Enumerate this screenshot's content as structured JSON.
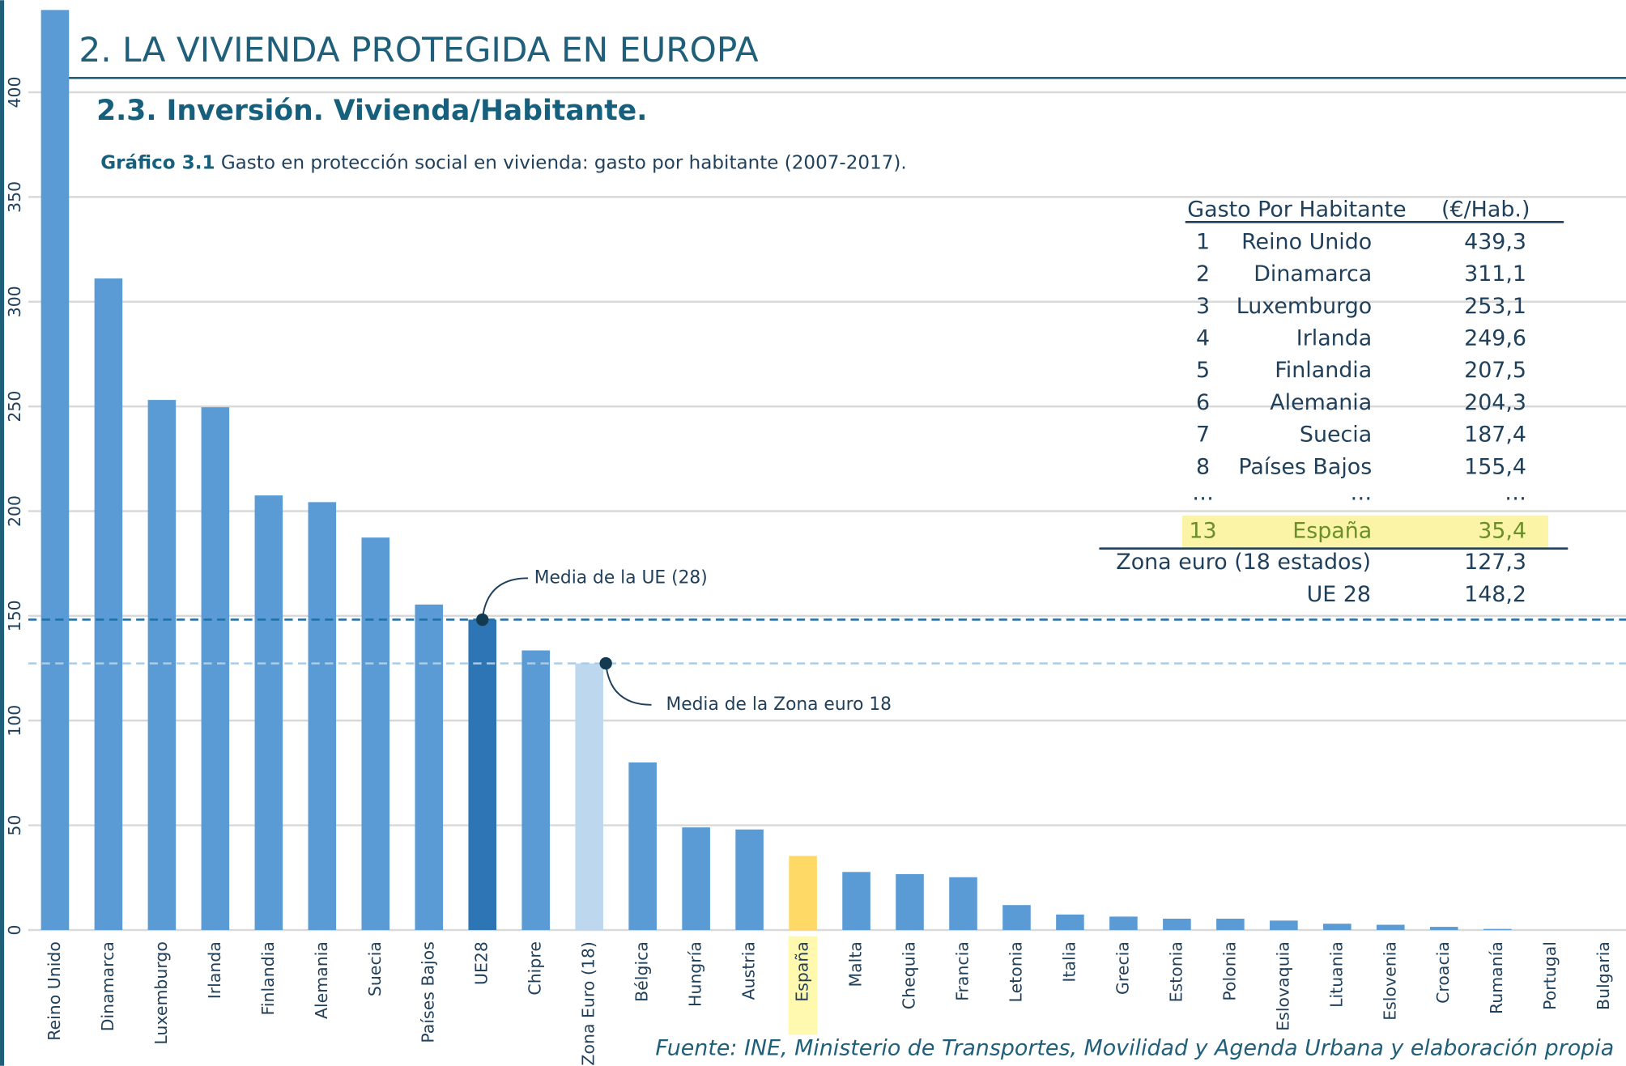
{
  "header": {
    "title": "2. LA VIVIENDA PROTEGIDA EN EUROPA",
    "subtitle": "2.3. Inversión. Vivienda/Habitante.",
    "caption_label": "Gráfico 3.1",
    "caption": "Gasto en protección social en vivienda: gasto por habitante (2007-2017)."
  },
  "chart_data": {
    "type": "bar",
    "categories": [
      "Reino Unido",
      "Dinamarca",
      "Luxemburgo",
      "Irlanda",
      "Finlandia",
      "Alemania",
      "Suecia",
      "Países Bajos",
      "UE28",
      "Chipre",
      "Zona Euro (18)",
      "Bélgica",
      "Hungría",
      "Austria",
      "España",
      "Malta",
      "Chequia",
      "Francia",
      "Letonia",
      "Italia",
      "Grecia",
      "Estonia",
      "Polonia",
      "Eslovaquia",
      "Lituania",
      "Eslovenia",
      "Croacia",
      "Rumanía",
      "Portugal",
      "Bulgaria"
    ],
    "values": [
      439.3,
      311.1,
      253.1,
      249.6,
      207.5,
      204.3,
      187.4,
      155.4,
      148.2,
      133.5,
      127.3,
      80,
      49,
      48,
      35.4,
      27.7,
      26.7,
      25.2,
      11.9,
      7.4,
      6.4,
      5.4,
      5.4,
      4.5,
      3,
      2.5,
      1.5,
      0.5,
      0,
      0
    ],
    "colors": [
      "#5b9bd5",
      "#5b9bd5",
      "#5b9bd5",
      "#5b9bd5",
      "#5b9bd5",
      "#5b9bd5",
      "#5b9bd5",
      "#5b9bd5",
      "#2e75b6",
      "#5b9bd5",
      "#bdd7ee",
      "#5b9bd5",
      "#5b9bd5",
      "#5b9bd5",
      "#ffd966",
      "#5b9bd5",
      "#5b9bd5",
      "#5b9bd5",
      "#5b9bd5",
      "#5b9bd5",
      "#5b9bd5",
      "#5b9bd5",
      "#5b9bd5",
      "#5b9bd5",
      "#5b9bd5",
      "#5b9bd5",
      "#5b9bd5",
      "#5b9bd5",
      "#5b9bd5",
      "#5b9bd5"
    ],
    "ylim": [
      0,
      440
    ],
    "yticks": [
      0,
      50,
      100,
      150,
      200,
      250,
      300,
      350,
      400
    ],
    "grid": true,
    "reference_lines": [
      {
        "label": "Media de la UE (28)",
        "value": 148.2,
        "color": "#1f6fa8"
      },
      {
        "label": "Media de la Zona euro 18",
        "value": 127.3,
        "color": "#a9cce8"
      }
    ]
  },
  "table": {
    "header": [
      "Gasto Por Habitante",
      "(€/Hab.)"
    ],
    "rows": [
      [
        "1",
        "Reino Unido",
        "439,3"
      ],
      [
        "2",
        "Dinamarca",
        "311,1"
      ],
      [
        "3",
        "Luxemburgo",
        "253,1"
      ],
      [
        "4",
        "Irlanda",
        "249,6"
      ],
      [
        "5",
        "Finlandia",
        "207,5"
      ],
      [
        "6",
        "Alemania",
        "204,3"
      ],
      [
        "7",
        "Suecia",
        "187,4"
      ],
      [
        "8",
        "Países Bajos",
        "155,4"
      ],
      [
        "…",
        "…",
        "…"
      ],
      [
        "13",
        "España",
        "35,4"
      ]
    ],
    "summary": [
      [
        "Zona euro (18 estados)",
        "127,3"
      ],
      [
        "UE 28",
        "148,2"
      ]
    ]
  },
  "source": "Fuente: INE, Ministerio de Transportes, Movilidad y Agenda Urbana y elaboración propia"
}
